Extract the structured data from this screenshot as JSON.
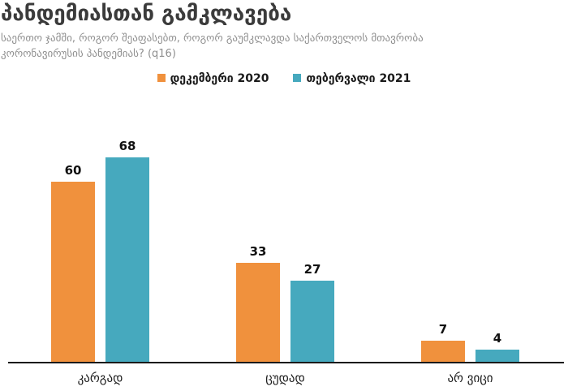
{
  "header": {
    "title": "პანდემიასთან გამკლავება",
    "subtitle": "საერთო ჯამში, როგორ შეაფასებთ, როგორ გაუმკლავდა საქართველოს მთავრობა\nკორონავირუსის პანდემიას? (q16)"
  },
  "chart_data": {
    "type": "bar",
    "title": "პანდემიასთან გამკლავება",
    "subtitle": "საერთო ჯამში, როგორ შეაფასებთ, როგორ გაუმკლავდა საქართველოს მთავრობა კორონავირუსის პანდემიას? (q16)",
    "categories": [
      "კარგად",
      "ცუდად",
      "არ ვიცი"
    ],
    "series": [
      {
        "name": "დეკემბერი 2020",
        "color": "#F0913D",
        "values": [
          60,
          33,
          7
        ]
      },
      {
        "name": "თებერვალი 2021",
        "color": "#46A9BE",
        "values": [
          68,
          27,
          4
        ]
      }
    ],
    "ylim": [
      0,
      75
    ],
    "xlabel": "",
    "ylabel": "",
    "grid": false,
    "legend_position": "top",
    "value_labels": true,
    "axis_line_color": "#1a1a1a",
    "title_color": "#3b3b3b",
    "subtitle_color": "#8f8f8f"
  }
}
